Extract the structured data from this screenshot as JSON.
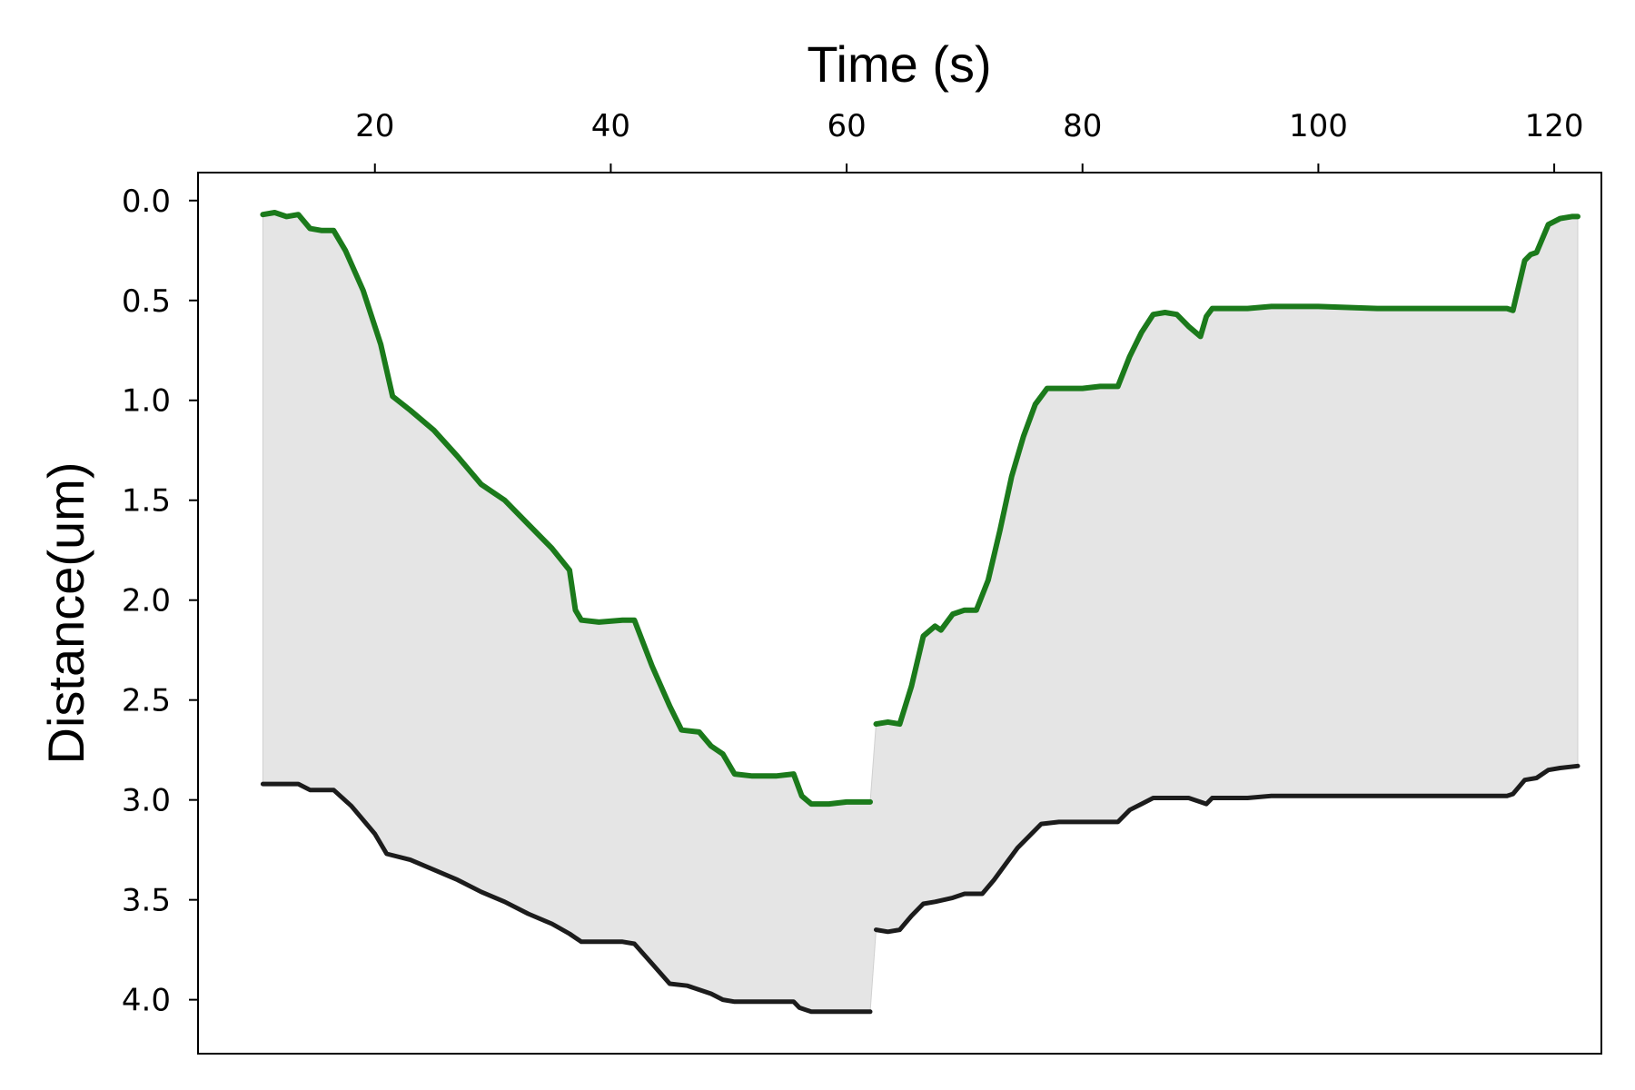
{
  "chart_data": {
    "type": "line",
    "title": "",
    "xlabel": "Time (s)",
    "ylabel": "Distance(um)",
    "xlim": [
      5,
      124
    ],
    "ylim": [
      -0.14,
      4.27
    ],
    "y_inverted": true,
    "x_axis_position": "top",
    "grid": false,
    "legend": "none",
    "x_ticks": [
      20,
      40,
      60,
      80,
      100,
      120
    ],
    "x_tick_labels": [
      "20",
      "40",
      "60",
      "80",
      "100",
      "120"
    ],
    "y_ticks": [
      0.0,
      0.5,
      1.0,
      1.5,
      2.0,
      2.5,
      3.0,
      3.5,
      4.0
    ],
    "y_tick_labels": [
      "0.0",
      "0.5",
      "1.0",
      "1.5",
      "2.0",
      "2.5",
      "3.0",
      "3.5",
      "4.0"
    ],
    "fill_between": {
      "color": "#e5e5e5",
      "between": [
        "upper",
        "lower"
      ]
    },
    "series": [
      {
        "color": "#1b7a1b",
        "segments": [
          [
            [
              10.5,
              0.07
            ],
            [
              11.5,
              0.06
            ],
            [
              12.5,
              0.08
            ],
            [
              13.5,
              0.07
            ],
            [
              14.5,
              0.14
            ],
            [
              15.5,
              0.15
            ],
            [
              16.5,
              0.15
            ],
            [
              17.5,
              0.25
            ],
            [
              19,
              0.45
            ],
            [
              20.5,
              0.72
            ],
            [
              21.5,
              0.98
            ],
            [
              23,
              1.05
            ],
            [
              25,
              1.15
            ],
            [
              27,
              1.28
            ],
            [
              29,
              1.42
            ],
            [
              31,
              1.5
            ],
            [
              33,
              1.62
            ],
            [
              35,
              1.74
            ],
            [
              36.5,
              1.85
            ],
            [
              37,
              2.05
            ],
            [
              37.5,
              2.1
            ],
            [
              39,
              2.11
            ],
            [
              41,
              2.1
            ],
            [
              42,
              2.1
            ],
            [
              43.5,
              2.33
            ],
            [
              45,
              2.53
            ],
            [
              46,
              2.65
            ],
            [
              47.5,
              2.66
            ],
            [
              48.5,
              2.73
            ],
            [
              49.5,
              2.77
            ],
            [
              50.5,
              2.87
            ],
            [
              52,
              2.88
            ],
            [
              54,
              2.88
            ],
            [
              55.5,
              2.87
            ],
            [
              56.2,
              2.98
            ],
            [
              57,
              3.02
            ],
            [
              58.5,
              3.02
            ],
            [
              60,
              3.01
            ],
            [
              62,
              3.01
            ]
          ],
          [
            [
              62.5,
              2.62
            ],
            [
              63.5,
              2.61
            ],
            [
              64.5,
              2.62
            ],
            [
              65.5,
              2.43
            ],
            [
              66.5,
              2.18
            ],
            [
              67.5,
              2.13
            ],
            [
              68,
              2.15
            ],
            [
              69,
              2.07
            ],
            [
              70,
              2.05
            ],
            [
              71,
              2.05
            ],
            [
              72,
              1.9
            ],
            [
              73,
              1.65
            ],
            [
              74,
              1.38
            ],
            [
              75,
              1.18
            ],
            [
              76,
              1.02
            ],
            [
              77,
              0.94
            ],
            [
              78,
              0.94
            ],
            [
              80,
              0.94
            ],
            [
              81.5,
              0.93
            ],
            [
              83,
              0.93
            ],
            [
              84,
              0.78
            ],
            [
              85,
              0.66
            ],
            [
              86,
              0.57
            ],
            [
              87,
              0.56
            ],
            [
              88,
              0.57
            ],
            [
              89,
              0.63
            ],
            [
              90,
              0.68
            ],
            [
              90.5,
              0.58
            ],
            [
              91,
              0.54
            ],
            [
              94,
              0.54
            ],
            [
              96,
              0.53
            ],
            [
              100,
              0.53
            ],
            [
              105,
              0.54
            ],
            [
              110,
              0.54
            ],
            [
              113,
              0.54
            ],
            [
              116,
              0.54
            ],
            [
              116.5,
              0.55
            ],
            [
              117.5,
              0.3
            ],
            [
              118,
              0.27
            ],
            [
              118.5,
              0.26
            ],
            [
              119.5,
              0.12
            ],
            [
              120.5,
              0.09
            ],
            [
              121.5,
              0.08
            ],
            [
              122,
              0.08
            ]
          ]
        ]
      },
      {
        "color": "#1c1c1c",
        "segments": [
          [
            [
              10.5,
              2.92
            ],
            [
              12,
              2.92
            ],
            [
              13.5,
              2.92
            ],
            [
              14.5,
              2.95
            ],
            [
              16.5,
              2.95
            ],
            [
              18,
              3.03
            ],
            [
              20,
              3.17
            ],
            [
              21,
              3.27
            ],
            [
              23,
              3.3
            ],
            [
              25,
              3.35
            ],
            [
              27,
              3.4
            ],
            [
              29,
              3.46
            ],
            [
              31,
              3.51
            ],
            [
              33,
              3.57
            ],
            [
              35,
              3.62
            ],
            [
              36.5,
              3.67
            ],
            [
              37.5,
              3.71
            ],
            [
              39,
              3.71
            ],
            [
              41,
              3.71
            ],
            [
              42,
              3.72
            ],
            [
              43.5,
              3.82
            ],
            [
              45,
              3.92
            ],
            [
              46.5,
              3.93
            ],
            [
              47.5,
              3.95
            ],
            [
              48.5,
              3.97
            ],
            [
              49.5,
              4.0
            ],
            [
              50.5,
              4.01
            ],
            [
              52,
              4.01
            ],
            [
              54,
              4.01
            ],
            [
              55.5,
              4.01
            ],
            [
              56,
              4.04
            ],
            [
              57,
              4.06
            ],
            [
              59,
              4.06
            ],
            [
              62,
              4.06
            ]
          ],
          [
            [
              62.5,
              3.65
            ],
            [
              63.5,
              3.66
            ],
            [
              64.5,
              3.65
            ],
            [
              65.5,
              3.58
            ],
            [
              66.5,
              3.52
            ],
            [
              67.5,
              3.51
            ],
            [
              69,
              3.49
            ],
            [
              70,
              3.47
            ],
            [
              71.5,
              3.47
            ],
            [
              72.5,
              3.4
            ],
            [
              73.5,
              3.32
            ],
            [
              74.5,
              3.24
            ],
            [
              75.5,
              3.18
            ],
            [
              76.5,
              3.12
            ],
            [
              78,
              3.11
            ],
            [
              80,
              3.11
            ],
            [
              82,
              3.11
            ],
            [
              83,
              3.11
            ],
            [
              84,
              3.05
            ],
            [
              85,
              3.02
            ],
            [
              86,
              2.99
            ],
            [
              88,
              2.99
            ],
            [
              89,
              2.99
            ],
            [
              90,
              3.01
            ],
            [
              90.5,
              3.02
            ],
            [
              91,
              2.99
            ],
            [
              94,
              2.99
            ],
            [
              96,
              2.98
            ],
            [
              100,
              2.98
            ],
            [
              105,
              2.98
            ],
            [
              110,
              2.98
            ],
            [
              113,
              2.98
            ],
            [
              116,
              2.98
            ],
            [
              116.5,
              2.97
            ],
            [
              117.5,
              2.9
            ],
            [
              118.5,
              2.89
            ],
            [
              119.5,
              2.85
            ],
            [
              120.5,
              2.84
            ],
            [
              122,
              2.83
            ]
          ]
        ]
      }
    ]
  }
}
